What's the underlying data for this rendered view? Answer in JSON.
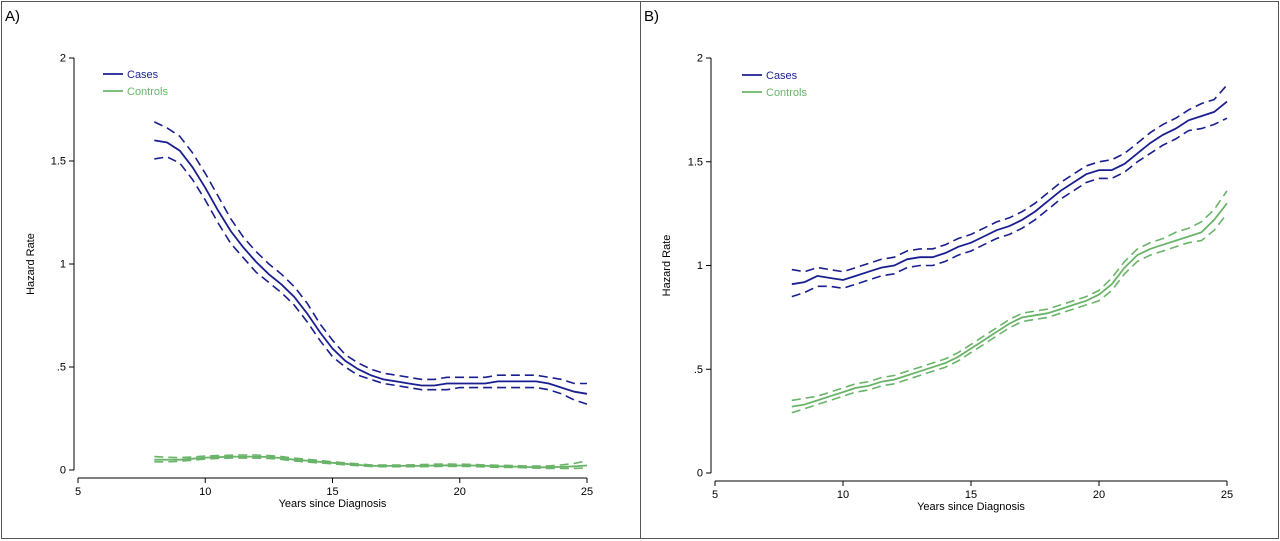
{
  "colors": {
    "cases": "#1a1f8f",
    "controls": "#6ab46a",
    "axis": "#000000"
  },
  "panels": [
    {
      "label": "A)"
    },
    {
      "label": "B)"
    }
  ],
  "chart_data": [
    {
      "type": "line",
      "panel": "A)",
      "xlabel": "Years since Diagnosis",
      "ylabel": "Hazard Rate",
      "xlim": [
        5,
        25
      ],
      "ylim": [
        0,
        2
      ],
      "xticks": [
        "5",
        "10",
        "15",
        "20",
        "25"
      ],
      "yticks": [
        "0",
        ".5",
        "1",
        "1.5",
        "2"
      ],
      "legend_position": "top-left",
      "grid": false,
      "x": [
        8,
        8.5,
        9,
        9.5,
        10,
        10.5,
        11,
        11.5,
        12,
        12.5,
        13,
        13.5,
        14,
        14.5,
        15,
        15.5,
        16,
        16.5,
        17,
        17.5,
        18,
        18.5,
        19,
        19.5,
        20,
        20.5,
        21,
        21.5,
        22,
        22.5,
        23,
        23.5,
        24,
        24.5,
        25
      ],
      "series": [
        {
          "name": "Cases",
          "color_key": "cases",
          "values": [
            1.6,
            1.59,
            1.55,
            1.47,
            1.37,
            1.26,
            1.16,
            1.08,
            1.01,
            0.95,
            0.9,
            0.84,
            0.76,
            0.67,
            0.59,
            0.53,
            0.49,
            0.46,
            0.44,
            0.43,
            0.42,
            0.41,
            0.41,
            0.42,
            0.42,
            0.42,
            0.42,
            0.43,
            0.43,
            0.43,
            0.43,
            0.42,
            0.4,
            0.38,
            0.37
          ],
          "upper": [
            1.69,
            1.66,
            1.62,
            1.54,
            1.44,
            1.33,
            1.22,
            1.13,
            1.06,
            1.0,
            0.95,
            0.89,
            0.81,
            0.71,
            0.63,
            0.56,
            0.52,
            0.49,
            0.47,
            0.46,
            0.45,
            0.44,
            0.44,
            0.45,
            0.45,
            0.45,
            0.45,
            0.46,
            0.46,
            0.46,
            0.46,
            0.45,
            0.44,
            0.42,
            0.42
          ],
          "lower": [
            1.51,
            1.52,
            1.49,
            1.41,
            1.31,
            1.2,
            1.1,
            1.03,
            0.96,
            0.91,
            0.86,
            0.8,
            0.72,
            0.63,
            0.55,
            0.5,
            0.46,
            0.44,
            0.42,
            0.41,
            0.4,
            0.39,
            0.39,
            0.39,
            0.4,
            0.4,
            0.4,
            0.4,
            0.4,
            0.4,
            0.4,
            0.39,
            0.37,
            0.34,
            0.32
          ]
        },
        {
          "name": "Controls",
          "color_key": "controls",
          "values": [
            0.05,
            0.05,
            0.05,
            0.055,
            0.06,
            0.062,
            0.065,
            0.065,
            0.065,
            0.063,
            0.058,
            0.05,
            0.045,
            0.04,
            0.035,
            0.03,
            0.025,
            0.02,
            0.02,
            0.02,
            0.02,
            0.02,
            0.022,
            0.023,
            0.022,
            0.022,
            0.02,
            0.018,
            0.017,
            0.015,
            0.013,
            0.013,
            0.015,
            0.018,
            0.022
          ],
          "upper": [
            0.065,
            0.062,
            0.06,
            0.063,
            0.068,
            0.07,
            0.072,
            0.073,
            0.073,
            0.07,
            0.065,
            0.058,
            0.052,
            0.046,
            0.04,
            0.035,
            0.03,
            0.025,
            0.024,
            0.024,
            0.025,
            0.026,
            0.028,
            0.029,
            0.028,
            0.027,
            0.025,
            0.023,
            0.022,
            0.02,
            0.019,
            0.02,
            0.025,
            0.032,
            0.045
          ],
          "lower": [
            0.04,
            0.04,
            0.042,
            0.048,
            0.053,
            0.056,
            0.058,
            0.058,
            0.058,
            0.056,
            0.051,
            0.044,
            0.039,
            0.034,
            0.03,
            0.025,
            0.021,
            0.017,
            0.016,
            0.016,
            0.016,
            0.016,
            0.017,
            0.018,
            0.017,
            0.017,
            0.015,
            0.013,
            0.012,
            0.011,
            0.009,
            0.008,
            0.008,
            0.008,
            0.01
          ]
        }
      ]
    },
    {
      "type": "line",
      "panel": "B)",
      "xlabel": "Years since Diagnosis",
      "ylabel": "Hazard Rate",
      "xlim": [
        5,
        25
      ],
      "ylim": [
        0,
        2
      ],
      "xticks": [
        "5",
        "10",
        "15",
        "20",
        "25"
      ],
      "yticks": [
        "0",
        ".5",
        "1",
        "1.5",
        "2"
      ],
      "legend_position": "top-left",
      "grid": false,
      "x": [
        8,
        8.5,
        9,
        9.5,
        10,
        10.5,
        11,
        11.5,
        12,
        12.5,
        13,
        13.5,
        14,
        14.5,
        15,
        15.5,
        16,
        16.5,
        17,
        17.5,
        18,
        18.5,
        19,
        19.5,
        20,
        20.5,
        21,
        21.5,
        22,
        22.5,
        23,
        23.5,
        24,
        24.5,
        25
      ],
      "series": [
        {
          "name": "Cases",
          "color_key": "cases",
          "values": [
            0.91,
            0.92,
            0.95,
            0.94,
            0.93,
            0.95,
            0.97,
            0.99,
            1.0,
            1.03,
            1.04,
            1.04,
            1.06,
            1.09,
            1.11,
            1.14,
            1.17,
            1.19,
            1.22,
            1.26,
            1.31,
            1.36,
            1.4,
            1.44,
            1.46,
            1.46,
            1.49,
            1.54,
            1.59,
            1.63,
            1.66,
            1.7,
            1.72,
            1.74,
            1.79
          ],
          "upper": [
            0.98,
            0.97,
            0.99,
            0.98,
            0.97,
            0.99,
            1.01,
            1.03,
            1.04,
            1.07,
            1.08,
            1.08,
            1.1,
            1.13,
            1.15,
            1.18,
            1.21,
            1.23,
            1.26,
            1.3,
            1.35,
            1.4,
            1.44,
            1.48,
            1.5,
            1.51,
            1.54,
            1.59,
            1.64,
            1.68,
            1.71,
            1.75,
            1.78,
            1.8,
            1.87
          ],
          "lower": [
            0.85,
            0.87,
            0.9,
            0.9,
            0.89,
            0.91,
            0.93,
            0.95,
            0.96,
            0.99,
            1.0,
            1.0,
            1.02,
            1.05,
            1.07,
            1.1,
            1.13,
            1.15,
            1.18,
            1.22,
            1.27,
            1.32,
            1.36,
            1.4,
            1.42,
            1.42,
            1.45,
            1.5,
            1.54,
            1.58,
            1.61,
            1.65,
            1.66,
            1.68,
            1.71
          ]
        },
        {
          "name": "Controls",
          "color_key": "controls",
          "values": [
            0.32,
            0.33,
            0.35,
            0.37,
            0.39,
            0.41,
            0.42,
            0.44,
            0.45,
            0.47,
            0.49,
            0.51,
            0.53,
            0.56,
            0.6,
            0.64,
            0.68,
            0.72,
            0.75,
            0.76,
            0.77,
            0.79,
            0.81,
            0.83,
            0.86,
            0.91,
            0.99,
            1.05,
            1.08,
            1.1,
            1.12,
            1.14,
            1.16,
            1.22,
            1.3
          ],
          "upper": [
            0.35,
            0.36,
            0.37,
            0.39,
            0.41,
            0.43,
            0.44,
            0.46,
            0.47,
            0.49,
            0.51,
            0.53,
            0.55,
            0.58,
            0.62,
            0.66,
            0.7,
            0.74,
            0.77,
            0.78,
            0.79,
            0.81,
            0.83,
            0.85,
            0.88,
            0.94,
            1.02,
            1.08,
            1.11,
            1.13,
            1.16,
            1.18,
            1.21,
            1.27,
            1.36
          ],
          "lower": [
            0.29,
            0.31,
            0.33,
            0.35,
            0.37,
            0.39,
            0.4,
            0.42,
            0.43,
            0.45,
            0.47,
            0.49,
            0.51,
            0.54,
            0.58,
            0.62,
            0.66,
            0.7,
            0.73,
            0.74,
            0.75,
            0.77,
            0.79,
            0.81,
            0.83,
            0.88,
            0.96,
            1.02,
            1.05,
            1.07,
            1.09,
            1.11,
            1.12,
            1.17,
            1.25
          ]
        }
      ]
    }
  ]
}
